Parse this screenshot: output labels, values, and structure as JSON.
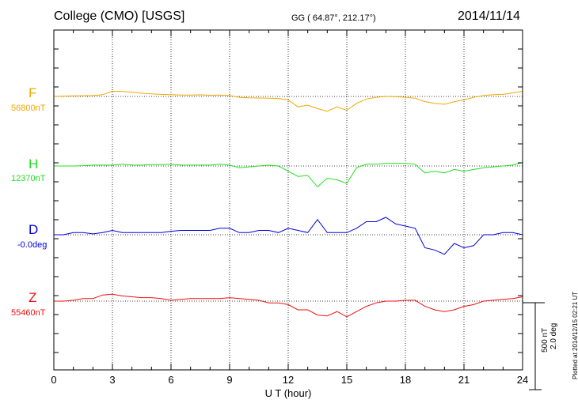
{
  "header": {
    "title": "College (CMO)  [USGS]",
    "coords": "GG ( 64.87°, 212.17°)",
    "date": "2014/11/14"
  },
  "plotted_note": "Plotted at 2014/12/15 02:21  UT",
  "colors": {
    "F": "#f0a800",
    "H": "#22e022",
    "D": "#0000dd",
    "Z": "#ee1111"
  },
  "chart_data": {
    "type": "line",
    "title": "College (CMO)  [USGS]",
    "xlabel": "U T (hour)",
    "ylabel": "",
    "xlim": [
      0,
      24
    ],
    "x_ticks": [
      "0",
      "3",
      "6",
      "9",
      "12",
      "15",
      "18",
      "21",
      "24"
    ],
    "scale_bar": {
      "label1": "500 nT",
      "label2": "2.0 deg",
      "value_nT": 500
    },
    "grid": true,
    "x": [
      0,
      0.5,
      1,
      1.5,
      2,
      2.5,
      3,
      3.5,
      4,
      4.5,
      5,
      5.5,
      6,
      6.5,
      7,
      7.5,
      8,
      8.5,
      9,
      9.5,
      10,
      10.5,
      11,
      11.5,
      12,
      12.5,
      13,
      13.5,
      14,
      14.5,
      15,
      15.5,
      16,
      16.5,
      17,
      17.5,
      18,
      18.5,
      19,
      19.5,
      20,
      20.5,
      21,
      21.5,
      22,
      22.5,
      23,
      23.5,
      24
    ],
    "series": [
      {
        "name": "F",
        "baseline": "56800nT",
        "values": [
          0,
          2,
          3,
          4,
          5,
          10,
          30,
          28,
          25,
          18,
          15,
          12,
          10,
          8,
          8,
          9,
          7,
          8,
          5,
          -5,
          -8,
          -9,
          -10,
          -12,
          -20,
          -60,
          -50,
          -70,
          -85,
          -60,
          -80,
          -40,
          -15,
          -5,
          0,
          -2,
          -5,
          -10,
          -30,
          -40,
          -45,
          -30,
          -20,
          -5,
          5,
          10,
          12,
          20,
          30
        ]
      },
      {
        "name": "H",
        "baseline": "12370nT",
        "values": [
          0,
          0,
          0,
          2,
          5,
          5,
          5,
          10,
          5,
          5,
          8,
          8,
          10,
          5,
          5,
          5,
          5,
          10,
          5,
          -10,
          -5,
          0,
          5,
          0,
          -30,
          -60,
          -55,
          -120,
          -70,
          -80,
          -100,
          -10,
          10,
          10,
          15,
          15,
          15,
          10,
          -40,
          -30,
          -40,
          -20,
          -30,
          -20,
          -10,
          -5,
          0,
          5,
          20
        ]
      },
      {
        "name": "D",
        "baseline": "-0.0deg",
        "values": [
          0,
          0,
          0.05,
          0.05,
          0.02,
          0.05,
          0.1,
          0.05,
          0.05,
          0.05,
          0.05,
          0.05,
          0.08,
          0.1,
          0.1,
          0.1,
          0.1,
          0.15,
          0.15,
          0.05,
          0.05,
          0.1,
          0.1,
          0.05,
          0.15,
          0.1,
          0.05,
          0.35,
          0.05,
          0.05,
          0.05,
          0.15,
          0.3,
          0.3,
          0.4,
          0.25,
          0.2,
          0.15,
          -0.3,
          -0.35,
          -0.45,
          -0.2,
          -0.3,
          -0.25,
          0,
          0,
          0.05,
          0.05,
          0
        ]
      },
      {
        "name": "Z",
        "baseline": "55460nT",
        "values": [
          0,
          0,
          5,
          15,
          15,
          35,
          40,
          30,
          25,
          20,
          20,
          15,
          5,
          10,
          15,
          15,
          15,
          15,
          20,
          15,
          10,
          5,
          -10,
          -10,
          -20,
          -50,
          -50,
          -80,
          -85,
          -60,
          -90,
          -60,
          -30,
          -10,
          0,
          0,
          5,
          5,
          -30,
          -50,
          -60,
          -50,
          -30,
          -20,
          0,
          5,
          10,
          15,
          25
        ]
      }
    ]
  }
}
